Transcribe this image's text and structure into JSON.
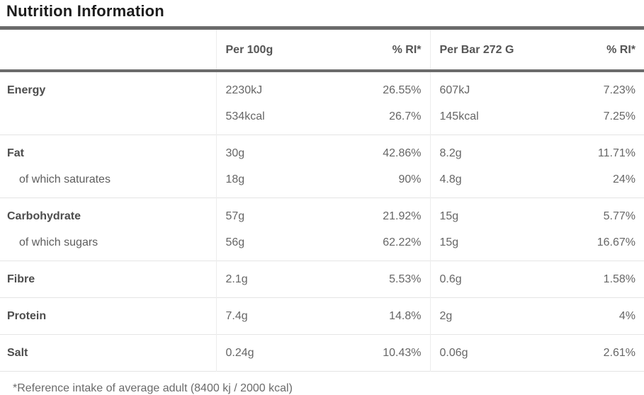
{
  "title": "Nutrition Information",
  "footnote": "*Reference intake of average adult (8400 kj / 2000 kcal)",
  "colors": {
    "heavy_border": "#6b6b6b",
    "light_border": "#e5e5e5",
    "title_text": "#1c1c1c",
    "label_text": "#4d4d4d",
    "value_text": "#666666"
  },
  "chart_data": {
    "type": "table",
    "title": "Nutrition Information",
    "columns": [
      "",
      "Per 100g",
      "% RI*",
      "Per Bar 272 G",
      "% RI*"
    ],
    "rows": [
      {
        "label": "Energy",
        "style": "bold",
        "group_start": true,
        "per_100g": "2230kJ",
        "ri_100g": "26.55%",
        "per_bar": "607kJ",
        "ri_bar": "7.23%"
      },
      {
        "label": "",
        "style": "none",
        "group_start": false,
        "per_100g": "534kcal",
        "ri_100g": "26.7%",
        "per_bar": "145kcal",
        "ri_bar": "7.25%"
      },
      {
        "label": "Fat",
        "style": "bold",
        "group_start": true,
        "per_100g": "30g",
        "ri_100g": "42.86%",
        "per_bar": "8.2g",
        "ri_bar": "11.71%"
      },
      {
        "label": "of which saturates",
        "style": "sub",
        "group_start": false,
        "per_100g": "18g",
        "ri_100g": "90%",
        "per_bar": "4.8g",
        "ri_bar": "24%"
      },
      {
        "label": "Carbohydrate",
        "style": "bold",
        "group_start": true,
        "per_100g": "57g",
        "ri_100g": "21.92%",
        "per_bar": "15g",
        "ri_bar": "5.77%"
      },
      {
        "label": "of which sugars",
        "style": "sub",
        "group_start": false,
        "per_100g": "56g",
        "ri_100g": "62.22%",
        "per_bar": "15g",
        "ri_bar": "16.67%"
      },
      {
        "label": "Fibre",
        "style": "bold",
        "group_start": true,
        "per_100g": "2.1g",
        "ri_100g": "5.53%",
        "per_bar": "0.6g",
        "ri_bar": "1.58%"
      },
      {
        "label": "Protein",
        "style": "bold",
        "group_start": true,
        "per_100g": "7.4g",
        "ri_100g": "14.8%",
        "per_bar": "2g",
        "ri_bar": "4%"
      },
      {
        "label": "Salt",
        "style": "bold",
        "group_start": true,
        "per_100g": "0.24g",
        "ri_100g": "10.43%",
        "per_bar": "0.06g",
        "ri_bar": "2.61%"
      }
    ],
    "footnote": "*Reference intake of average adult (8400 kj / 2000 kcal)"
  }
}
